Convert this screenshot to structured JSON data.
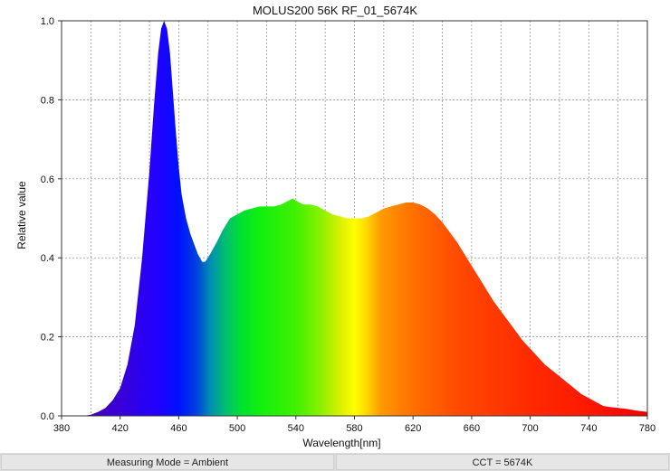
{
  "chart_data": {
    "type": "area",
    "title": "MOLUS200 56K RF_01_5674K",
    "xlabel": "Wavelength[nm]",
    "ylabel": "Relative value",
    "xlim": [
      380,
      780
    ],
    "ylim": [
      0,
      1.0
    ],
    "x_ticks": [
      "380",
      "420",
      "460",
      "500",
      "540",
      "580",
      "620",
      "660",
      "700",
      "740",
      "780"
    ],
    "y_ticks": [
      "0.0",
      "0.2",
      "0.4",
      "0.6",
      "0.8",
      "1.0"
    ],
    "grid": true,
    "fill": "visible-spectrum-gradient",
    "x": [
      380,
      395,
      400,
      405,
      410,
      415,
      420,
      425,
      430,
      435,
      440,
      443,
      446,
      448,
      450,
      452,
      454,
      456,
      458,
      460,
      462,
      465,
      468,
      470,
      473,
      476,
      478,
      480,
      483,
      486,
      490,
      495,
      500,
      505,
      510,
      515,
      520,
      525,
      530,
      535,
      538,
      540,
      545,
      550,
      555,
      560,
      565,
      570,
      575,
      580,
      585,
      590,
      595,
      600,
      605,
      610,
      615,
      620,
      625,
      630,
      635,
      640,
      645,
      650,
      655,
      660,
      665,
      670,
      675,
      680,
      685,
      690,
      695,
      700,
      705,
      710,
      715,
      720,
      725,
      730,
      735,
      740,
      745,
      750,
      755,
      760,
      765,
      770,
      775,
      780
    ],
    "y": [
      0,
      0,
      0.003,
      0.01,
      0.02,
      0.04,
      0.07,
      0.13,
      0.23,
      0.4,
      0.62,
      0.78,
      0.92,
      0.98,
      1.0,
      0.98,
      0.92,
      0.82,
      0.72,
      0.63,
      0.56,
      0.5,
      0.46,
      0.44,
      0.41,
      0.39,
      0.39,
      0.4,
      0.42,
      0.44,
      0.47,
      0.5,
      0.51,
      0.52,
      0.525,
      0.53,
      0.53,
      0.53,
      0.535,
      0.545,
      0.55,
      0.545,
      0.535,
      0.535,
      0.53,
      0.52,
      0.51,
      0.505,
      0.5,
      0.5,
      0.5,
      0.505,
      0.515,
      0.525,
      0.53,
      0.535,
      0.54,
      0.54,
      0.535,
      0.525,
      0.51,
      0.49,
      0.465,
      0.44,
      0.41,
      0.38,
      0.35,
      0.32,
      0.29,
      0.265,
      0.24,
      0.215,
      0.19,
      0.17,
      0.15,
      0.13,
      0.115,
      0.1,
      0.085,
      0.07,
      0.055,
      0.045,
      0.035,
      0.025,
      0.022,
      0.02,
      0.018,
      0.015,
      0.012,
      0.01
    ]
  },
  "status_bar": {
    "measuring_mode": "Measuring Mode = Ambient",
    "cct": "CCT = 5674K"
  }
}
